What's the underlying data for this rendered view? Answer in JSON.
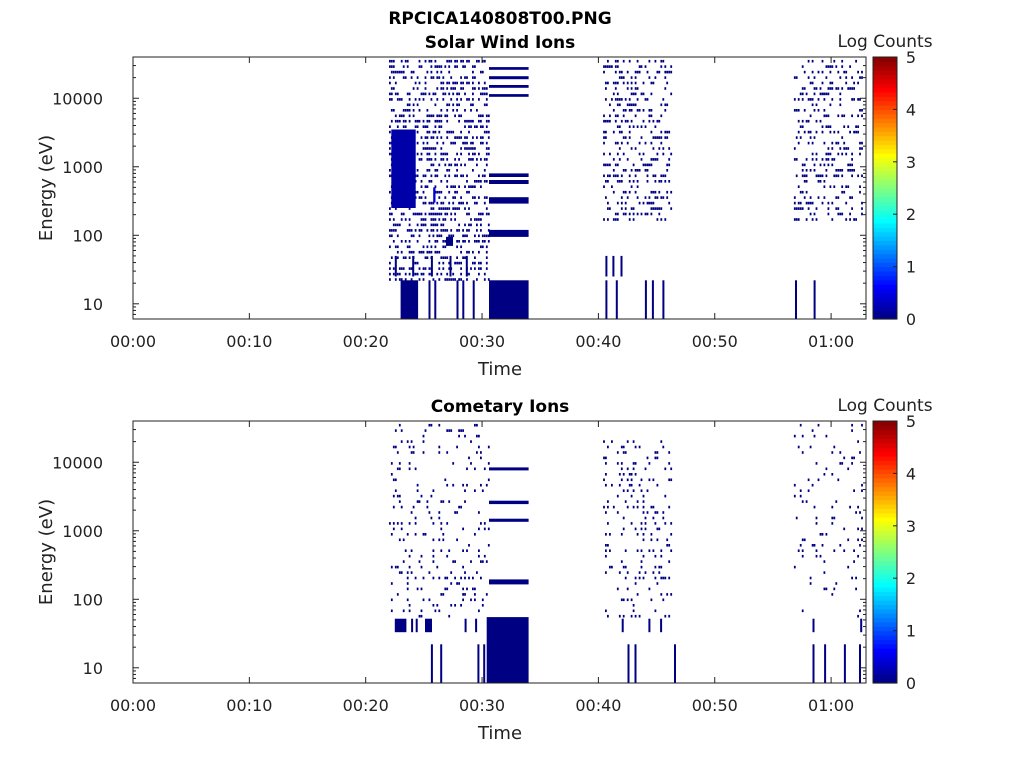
{
  "figure_title": "RPCICA140808T00.PNG",
  "colormap": [
    "#00007f",
    "#0000ff",
    "#007fff",
    "#00ffff",
    "#7fff7f",
    "#ffff00",
    "#ff7f00",
    "#ff0000",
    "#7f0000"
  ],
  "chart_data": [
    {
      "type": "heatmap",
      "title": "Solar Wind Ions",
      "xlabel": "Time",
      "ylabel": "Energy (eV)",
      "x_unit": "minutes after 00:00",
      "xlim": [
        0,
        63
      ],
      "x_ticks": [
        0,
        10,
        20,
        30,
        40,
        50,
        60
      ],
      "x_tick_labels": [
        "00:00",
        "00:10",
        "00:20",
        "00:30",
        "00:40",
        "00:50",
        "01:00"
      ],
      "y_scale": "log",
      "ylim": [
        6,
        40000
      ],
      "y_ticks": [
        10,
        100,
        1000,
        10000
      ],
      "y_tick_labels": [
        "10",
        "100",
        "1000",
        "10000"
      ],
      "colorbar": {
        "label": "Log Counts",
        "range": [
          0,
          5
        ],
        "ticks": [
          "0",
          "1",
          "2",
          "3",
          "4",
          "5"
        ]
      },
      "series": [
        {
          "kind": "burst",
          "x": [
            22.0,
            30.6
          ],
          "e": [
            25,
            38000
          ],
          "density": 0.42,
          "level": 0.05,
          "seed": 11
        },
        {
          "kind": "burst",
          "x": [
            40.4,
            46.3
          ],
          "e": [
            180,
            38000
          ],
          "density": 0.3,
          "level": 0.02,
          "seed": 23
        },
        {
          "kind": "burst",
          "x": [
            56.8,
            62.6
          ],
          "e": [
            180,
            35000
          ],
          "density": 0.28,
          "level": 0.02,
          "seed": 37
        },
        {
          "kind": "patch",
          "x": [
            22.2,
            24.3
          ],
          "e": [
            250,
            3500
          ],
          "level": 0.2
        },
        {
          "kind": "patch",
          "x": [
            25.8,
            26.0
          ],
          "e": [
            300,
            500
          ],
          "level": 0.4
        },
        {
          "kind": "patch",
          "x": [
            23.0,
            24.5
          ],
          "e": [
            6,
            22
          ],
          "level": 0.02
        },
        {
          "kind": "patch",
          "x": [
            30.6,
            34.0
          ],
          "e": [
            6,
            22
          ],
          "level": 0.02
        },
        {
          "kind": "patch",
          "x": [
            30.6,
            34.0
          ],
          "e": [
            95,
            120
          ],
          "level": 0.02
        },
        {
          "kind": "patch",
          "x": [
            30.6,
            34.0
          ],
          "e": [
            290,
            360
          ],
          "level": 0.02
        },
        {
          "kind": "patch",
          "x": [
            30.6,
            34.0
          ],
          "e": [
            560,
            640
          ],
          "level": 0.02
        },
        {
          "kind": "patch",
          "x": [
            30.6,
            34.0
          ],
          "e": [
            710,
            800
          ],
          "level": 0.02
        },
        {
          "kind": "patch",
          "x": [
            30.6,
            34.0
          ],
          "e": [
            10500,
            11500
          ],
          "level": 0.02
        },
        {
          "kind": "patch",
          "x": [
            30.6,
            34.0
          ],
          "e": [
            14200,
            15600
          ],
          "level": 0.02
        },
        {
          "kind": "patch",
          "x": [
            30.6,
            34.0
          ],
          "e": [
            19000,
            21000
          ],
          "level": 0.02
        },
        {
          "kind": "patch",
          "x": [
            30.6,
            34.0
          ],
          "e": [
            26000,
            28500
          ],
          "level": 0.02
        },
        {
          "kind": "patch",
          "x": [
            26.9,
            27.5
          ],
          "e": [
            70,
            95
          ],
          "level": 0.02
        },
        {
          "kind": "vlines",
          "x": [
            25.4,
            25.9,
            27.8,
            28.3,
            29.2,
            40.6,
            41.5,
            44.0,
            44.6,
            45.5,
            56.9,
            58.5
          ],
          "e": [
            6,
            22
          ],
          "w": 0.17,
          "level": 0.02
        },
        {
          "kind": "vlines",
          "x": [
            22.5,
            24.0,
            25.6,
            27.2,
            28.6,
            40.6,
            41.2,
            41.9
          ],
          "e": [
            25,
            50
          ],
          "w": 0.17,
          "level": 0.02
        }
      ]
    },
    {
      "type": "heatmap",
      "title": "Cometary Ions",
      "xlabel": "Time",
      "ylabel": "Energy (eV)",
      "x_unit": "minutes after 00:00",
      "xlim": [
        0,
        63
      ],
      "x_ticks": [
        0,
        10,
        20,
        30,
        40,
        50,
        60
      ],
      "x_tick_labels": [
        "00:00",
        "00:10",
        "00:20",
        "00:30",
        "00:40",
        "00:50",
        "01:00"
      ],
      "y_scale": "log",
      "ylim": [
        6,
        40000
      ],
      "y_ticks": [
        10,
        100,
        1000,
        10000
      ],
      "y_tick_labels": [
        "10",
        "100",
        "1000",
        "10000"
      ],
      "colorbar": {
        "label": "Log Counts",
        "range": [
          0,
          5
        ],
        "ticks": [
          "0",
          "1",
          "2",
          "3",
          "4",
          "5"
        ]
      },
      "series": [
        {
          "kind": "burst",
          "x": [
            22.0,
            30.6
          ],
          "e": [
            60,
            38000
          ],
          "density": 0.14,
          "level": 0.02,
          "seed": 51
        },
        {
          "kind": "burst",
          "x": [
            40.4,
            46.3
          ],
          "e": [
            60,
            20000
          ],
          "density": 0.14,
          "level": 0.02,
          "seed": 63
        },
        {
          "kind": "burst",
          "x": [
            56.8,
            62.6
          ],
          "e": [
            60,
            38000
          ],
          "density": 0.09,
          "level": 0.02,
          "seed": 77
        },
        {
          "kind": "patch",
          "x": [
            30.4,
            34.0
          ],
          "e": [
            6,
            55
          ],
          "level": 0.02
        },
        {
          "kind": "patch",
          "x": [
            30.6,
            34.0
          ],
          "e": [
            165,
            195
          ],
          "level": 0.02
        },
        {
          "kind": "patch",
          "x": [
            30.6,
            34.0
          ],
          "e": [
            1350,
            1500
          ],
          "level": 0.02
        },
        {
          "kind": "patch",
          "x": [
            30.6,
            34.0
          ],
          "e": [
            2450,
            2750
          ],
          "level": 0.02
        },
        {
          "kind": "patch",
          "x": [
            30.6,
            34.0
          ],
          "e": [
            7600,
            8400
          ],
          "level": 0.02
        },
        {
          "kind": "patch",
          "x": [
            22.5,
            23.5
          ],
          "e": [
            33,
            52
          ],
          "level": 0.02
        },
        {
          "kind": "patch",
          "x": [
            25.1,
            25.7
          ],
          "e": [
            33,
            52
          ],
          "level": 0.02
        },
        {
          "kind": "vlines",
          "x": [
            25.6,
            26.4,
            29.6,
            30.1,
            42.5,
            43.1,
            46.5,
            58.4,
            59.4,
            61.1,
            62.4
          ],
          "e": [
            6,
            22
          ],
          "w": 0.17,
          "level": 0.02
        },
        {
          "kind": "vlines",
          "x": [
            23.9,
            24.3,
            28.5,
            29.4,
            42.0,
            44.3,
            45.3,
            58.4,
            62.5
          ],
          "e": [
            33,
            52
          ],
          "w": 0.17,
          "level": 0.02
        }
      ]
    }
  ]
}
